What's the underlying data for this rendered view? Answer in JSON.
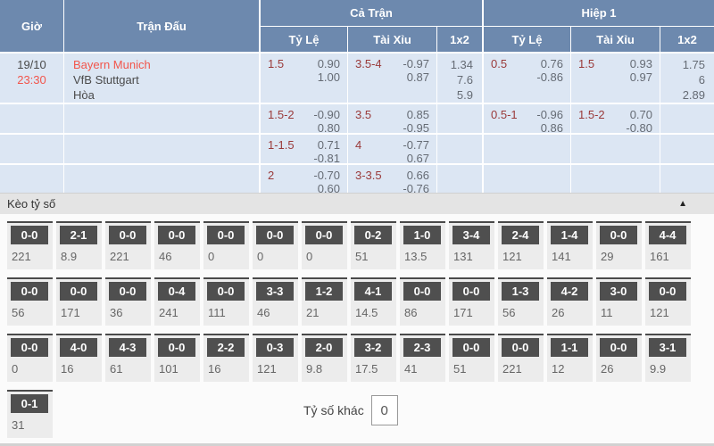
{
  "table": {
    "header": {
      "time": "Giờ",
      "match": "Trận Đấu",
      "full_match": "Cả Trận",
      "first_half": "Hiệp 1",
      "sub": {
        "handicap": "Tỷ Lệ",
        "over_under": "Tài Xỉu",
        "one_x_two": "1x2"
      }
    },
    "match": {
      "date": "19/10",
      "time": "23:30",
      "home": "Bayern Munich",
      "away": "VfB Stuttgart",
      "draw": "Hòa"
    },
    "rows": [
      {
        "ft_hc_line": "1.5",
        "ft_hc_o1": "0.90",
        "ft_hc_o2": "1.00",
        "ft_ou_line": "3.5-4",
        "ft_ou_o1": "-0.97",
        "ft_ou_o2": "0.87",
        "ft_1x2": [
          "1.34",
          "7.6",
          "5.9"
        ],
        "h1_hc_line": "0.5",
        "h1_hc_o1": "0.76",
        "h1_hc_o2": "-0.86",
        "h1_ou_line": "1.5",
        "h1_ou_o1": "0.93",
        "h1_ou_o2": "0.97",
        "h1_1x2": [
          "1.75",
          "6",
          "2.89"
        ]
      },
      {
        "ft_hc_line": "1.5-2",
        "ft_hc_o1": "-0.90",
        "ft_hc_o2": "0.80",
        "ft_ou_line": "3.5",
        "ft_ou_o1": "0.85",
        "ft_ou_o2": "-0.95",
        "h1_hc_line": "0.5-1",
        "h1_hc_o1": "-0.96",
        "h1_hc_o2": "0.86",
        "h1_ou_line": "1.5-2",
        "h1_ou_o1": "0.70",
        "h1_ou_o2": "-0.80"
      },
      {
        "ft_hc_line": "1-1.5",
        "ft_hc_o1": "0.71",
        "ft_hc_o2": "-0.81",
        "ft_ou_line": "4",
        "ft_ou_o1": "-0.77",
        "ft_ou_o2": "0.67"
      },
      {
        "ft_hc_line": "2",
        "ft_hc_o1": "-0.70",
        "ft_hc_o2": "0.60",
        "ft_ou_line": "3-3.5",
        "ft_ou_o1": "0.66",
        "ft_ou_o2": "-0.76"
      }
    ]
  },
  "score_section": {
    "title": "Kèo tỷ số",
    "collapse_icon": "▲",
    "rows": [
      [
        {
          "score": "0-0",
          "odds": "221"
        },
        {
          "score": "2-1",
          "odds": "8.9"
        },
        {
          "score": "0-0",
          "odds": "221"
        },
        {
          "score": "0-0",
          "odds": "46"
        },
        {
          "score": "0-0",
          "odds": "0"
        },
        {
          "score": "0-0",
          "odds": "0"
        },
        {
          "score": "0-0",
          "odds": "0"
        },
        {
          "score": "0-2",
          "odds": "51"
        },
        {
          "score": "1-0",
          "odds": "13.5"
        },
        {
          "score": "3-4",
          "odds": "131"
        },
        {
          "score": "2-4",
          "odds": "121"
        },
        {
          "score": "1-4",
          "odds": "141"
        },
        {
          "score": "0-0",
          "odds": "29"
        },
        {
          "score": "4-4",
          "odds": "161"
        }
      ],
      [
        {
          "score": "0-0",
          "odds": "56"
        },
        {
          "score": "0-0",
          "odds": "171"
        },
        {
          "score": "0-0",
          "odds": "36"
        },
        {
          "score": "0-4",
          "odds": "241"
        },
        {
          "score": "0-0",
          "odds": "111"
        },
        {
          "score": "3-3",
          "odds": "46"
        },
        {
          "score": "1-2",
          "odds": "21"
        },
        {
          "score": "4-1",
          "odds": "14.5"
        },
        {
          "score": "0-0",
          "odds": "86"
        },
        {
          "score": "0-0",
          "odds": "171"
        },
        {
          "score": "1-3",
          "odds": "56"
        },
        {
          "score": "4-2",
          "odds": "26"
        },
        {
          "score": "3-0",
          "odds": "11"
        },
        {
          "score": "0-0",
          "odds": "121"
        }
      ],
      [
        {
          "score": "0-0",
          "odds": "0"
        },
        {
          "score": "4-0",
          "odds": "16"
        },
        {
          "score": "4-3",
          "odds": "61"
        },
        {
          "score": "0-0",
          "odds": "101"
        },
        {
          "score": "2-2",
          "odds": "16"
        },
        {
          "score": "0-3",
          "odds": "121"
        },
        {
          "score": "2-0",
          "odds": "9.8"
        },
        {
          "score": "3-2",
          "odds": "17.5"
        },
        {
          "score": "2-3",
          "odds": "41"
        },
        {
          "score": "0-0",
          "odds": "51"
        },
        {
          "score": "0-0",
          "odds": "221"
        },
        {
          "score": "1-1",
          "odds": "12"
        },
        {
          "score": "0-0",
          "odds": "26"
        },
        {
          "score": "3-1",
          "odds": "9.9"
        }
      ],
      [
        {
          "score": "0-1",
          "odds": "31"
        }
      ]
    ],
    "other_label": "Tỷ số khác",
    "other_value": "0"
  }
}
